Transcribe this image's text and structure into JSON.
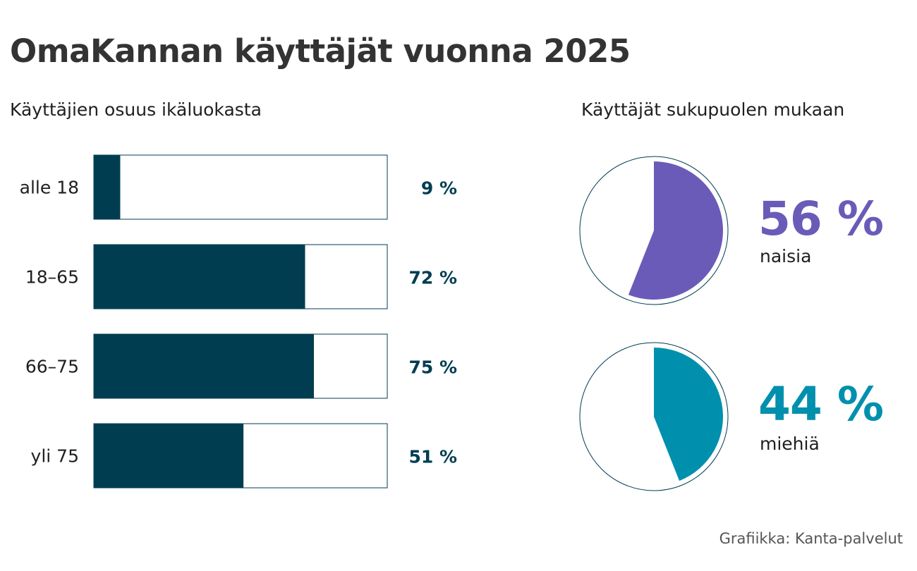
{
  "title": "OmaKannan käyttäjät vuonna 2025",
  "colors": {
    "bar": "#003d51",
    "bar_track_border": "#003d51",
    "women": "#6b5bb8",
    "men": "#0090ad",
    "pie_outline": "#003d51"
  },
  "credit": "Grafiikka: Kanta-palvelut",
  "chart_data": [
    {
      "type": "bar",
      "orientation": "horizontal",
      "title": "Käyttäjien osuus ikäluokasta",
      "categories": [
        "alle 18",
        "18–65",
        "66–75",
        "yli 75"
      ],
      "values": [
        9,
        72,
        75,
        51
      ],
      "value_labels": [
        "9 %",
        "72 %",
        "75 %",
        "51 %"
      ],
      "xlim": [
        0,
        100
      ],
      "unit": "%",
      "grid": false
    },
    {
      "type": "pie",
      "title": "Käyttäjät sukupuolen mukaan",
      "slices": [
        {
          "label": "naisia",
          "value": 56,
          "value_label": "56 %",
          "color": "#6b5bb8"
        },
        {
          "label": "miehiä",
          "value": 44,
          "value_label": "44 %",
          "color": "#0090ad"
        }
      ],
      "legend": "none"
    }
  ]
}
